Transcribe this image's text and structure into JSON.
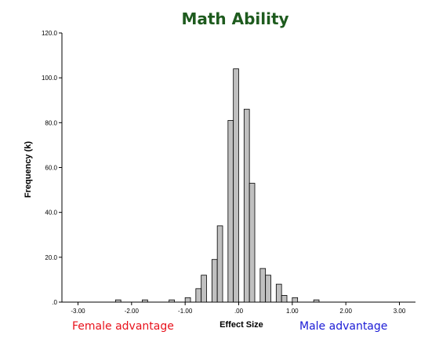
{
  "chart_data": {
    "type": "bar",
    "title": "Math Ability",
    "xlabel": "Effect Size",
    "ylabel": "Frequency (k)",
    "xlim": [
      -3.3,
      3.3
    ],
    "ylim": [
      0,
      120
    ],
    "bin_width": 0.1,
    "x_ticks": [
      -3,
      -2,
      -1,
      0,
      1,
      2,
      3
    ],
    "x_tick_labels": [
      "-3.00",
      "-2.00",
      "-1.00",
      ".00",
      "1.00",
      "2.00",
      "3.00"
    ],
    "y_ticks": [
      0,
      20,
      40,
      60,
      80,
      100,
      120
    ],
    "y_tick_labels": [
      ".0",
      "20.0",
      "40.0",
      "60.0",
      "80.0",
      "100.0",
      "120.0"
    ],
    "bar_color": "#c0c0c0",
    "bars": [
      {
        "x": -2.3,
        "value": 1
      },
      {
        "x": -1.8,
        "value": 1
      },
      {
        "x": -1.3,
        "value": 1
      },
      {
        "x": -1.0,
        "value": 2
      },
      {
        "x": -0.8,
        "value": 6
      },
      {
        "x": -0.7,
        "value": 12
      },
      {
        "x": -0.5,
        "value": 19
      },
      {
        "x": -0.4,
        "value": 34
      },
      {
        "x": -0.2,
        "value": 81
      },
      {
        "x": -0.1,
        "value": 104
      },
      {
        "x": 0.1,
        "value": 86
      },
      {
        "x": 0.2,
        "value": 53
      },
      {
        "x": 0.4,
        "value": 15
      },
      {
        "x": 0.5,
        "value": 12
      },
      {
        "x": 0.7,
        "value": 8
      },
      {
        "x": 0.8,
        "value": 3
      },
      {
        "x": 1.0,
        "value": 2
      },
      {
        "x": 1.4,
        "value": 1
      }
    ]
  },
  "annotations": {
    "left": "Female advantage",
    "left_color": "#e8121c",
    "right": "Male advantage",
    "right_color": "#1b1bd6"
  },
  "colors": {
    "title": "#1e5b1e"
  }
}
